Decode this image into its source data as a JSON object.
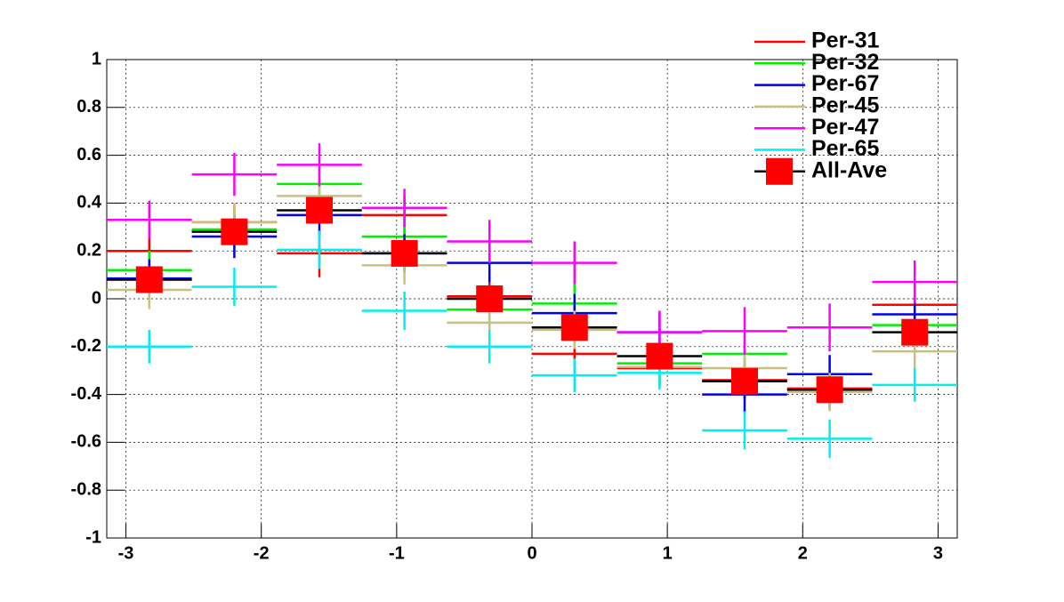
{
  "chart_data": {
    "type": "histogram",
    "bins": [
      -3.1416,
      -2.5133,
      -1.885,
      -1.2566,
      -0.6283,
      0,
      0.6283,
      1.2566,
      1.885,
      2.5133,
      3.1416
    ],
    "xlim": [
      -3.1416,
      3.1416
    ],
    "ylim": [
      -1,
      1
    ],
    "xticks": [
      -3,
      -2,
      -1,
      0,
      1,
      2,
      3
    ],
    "yticks": [
      -1,
      -0.8,
      -0.6,
      -0.4,
      -0.2,
      0,
      0.2,
      0.4,
      0.6,
      0.8,
      1
    ],
    "grid": true,
    "legend": "top-right",
    "series": [
      {
        "name": "Per-31",
        "color": "#ff0000",
        "values": [
          0.2,
          0.32,
          0.19,
          0.35,
          0.01,
          -0.23,
          -0.29,
          -0.34,
          -0.375,
          -0.025
        ],
        "errors": [
          0.08,
          0.08,
          0.1,
          0.08,
          0.08,
          0.08,
          0.08,
          0.08,
          0.08,
          0.08
        ]
      },
      {
        "name": "Per-32",
        "color": "#00ee00",
        "values": [
          0.12,
          0.29,
          0.48,
          0.26,
          -0.045,
          -0.02,
          -0.27,
          -0.23,
          -0.38,
          -0.11
        ],
        "errors": [
          0.08,
          0.08,
          0.08,
          0.08,
          0.08,
          0.08,
          0.08,
          0.08,
          0.08,
          0.08
        ]
      },
      {
        "name": "Per-67",
        "color": "#0000ee",
        "values": [
          0.085,
          0.26,
          0.35,
          0.19,
          0.15,
          -0.06,
          -0.14,
          -0.4,
          -0.315,
          -0.065
        ],
        "errors": [
          0.08,
          0.09,
          0.08,
          0.08,
          0.08,
          0.08,
          0.08,
          0.08,
          0.08,
          0.08
        ]
      },
      {
        "name": "Per-45",
        "color": "#c8c080",
        "values": [
          0.037,
          0.32,
          0.43,
          0.14,
          -0.1,
          -0.13,
          -0.285,
          -0.29,
          -0.39,
          -0.22
        ],
        "errors": [
          0.08,
          0.08,
          0.08,
          0.08,
          0.08,
          0.08,
          0.08,
          0.08,
          0.08,
          0.08
        ]
      },
      {
        "name": "Per-47",
        "color": "#ff00ff",
        "values": [
          0.33,
          0.52,
          0.56,
          0.38,
          0.24,
          0.15,
          -0.14,
          -0.135,
          -0.12,
          0.07
        ],
        "errors": [
          0.08,
          0.09,
          0.09,
          0.08,
          0.09,
          0.09,
          0.09,
          0.1,
          0.1,
          0.09
        ]
      },
      {
        "name": "Per-65",
        "color": "#00eeee",
        "values": [
          -0.2,
          0.05,
          0.205,
          -0.05,
          -0.2,
          -0.32,
          -0.31,
          -0.55,
          -0.585,
          -0.36
        ],
        "errors": [
          0.07,
          0.08,
          0.08,
          0.08,
          0.07,
          0.07,
          0.07,
          0.08,
          0.08,
          0.07
        ]
      },
      {
        "name": "All-Ave",
        "color": "#ff0000",
        "values": [
          0.08,
          0.28,
          0.37,
          0.19,
          0.0,
          -0.12,
          -0.24,
          -0.345,
          -0.38,
          -0.14
        ],
        "errors": [
          0.02,
          0.02,
          0.02,
          0.02,
          0.02,
          0.02,
          0.02,
          0.02,
          0.02,
          0.02
        ]
      }
    ]
  }
}
